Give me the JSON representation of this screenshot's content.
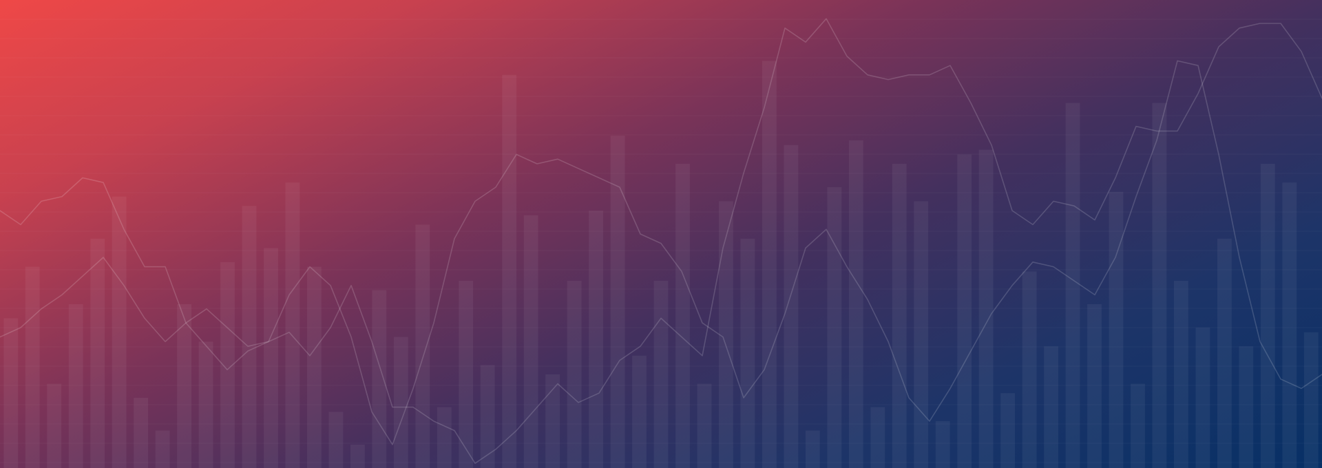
{
  "background": {
    "gradient_colors": [
      "#ef4847",
      "#c8414f",
      "#7a3358",
      "#43305e",
      "#1d3468",
      "#073066"
    ],
    "style": "decorative financial chart"
  },
  "chart_data": [
    {
      "type": "bar",
      "values": [
        0.32,
        0.43,
        0.18,
        0.35,
        0.49,
        0.58,
        0.15,
        0.08,
        0.35,
        0.27,
        0.44,
        0.56,
        0.47,
        0.61,
        0.43,
        0.12,
        0.05,
        0.38,
        0.28,
        0.52,
        0.13,
        0.4,
        0.22,
        0.84,
        0.54,
        0.2,
        0.4,
        0.55,
        0.71,
        0.24,
        0.4,
        0.65,
        0.18,
        0.57,
        0.49,
        0.87,
        0.69,
        0.08,
        0.6,
        0.7,
        0.13,
        0.65,
        0.57,
        0.1,
        0.67,
        0.68,
        0.16,
        0.42,
        0.26,
        0.78,
        0.35,
        0.59,
        0.18,
        0.78,
        0.4,
        0.3,
        0.49,
        0.26,
        0.65,
        0.61,
        0.29
      ]
    },
    {
      "type": "line",
      "series": [
        {
          "values": [
            0.55,
            0.52,
            0.57,
            0.58,
            0.62,
            0.61,
            0.51,
            0.43,
            0.43,
            0.31,
            0.26,
            0.21,
            0.25,
            0.27,
            0.29,
            0.24,
            0.3,
            0.39,
            0.27,
            0.13,
            0.13,
            0.1,
            0.08,
            0.01,
            0.04,
            0.08,
            0.13,
            0.18,
            0.14,
            0.16,
            0.23,
            0.26,
            0.32,
            0.28,
            0.24,
            0.47,
            0.63,
            0.77,
            0.94,
            0.91,
            0.96,
            0.88,
            0.84,
            0.83,
            0.84,
            0.84,
            0.86,
            0.78,
            0.69,
            0.55,
            0.52,
            0.57,
            0.56,
            0.53,
            0.62,
            0.73,
            0.72,
            0.72,
            0.8,
            0.9,
            0.94,
            0.95,
            0.95,
            0.89,
            0.79
          ]
        },
        {
          "values": [
            0.28,
            0.3,
            0.34,
            0.37,
            0.41,
            0.45,
            0.39,
            0.32,
            0.27,
            0.31,
            0.34,
            0.3,
            0.26,
            0.27,
            0.37,
            0.43,
            0.39,
            0.28,
            0.12,
            0.05,
            0.17,
            0.31,
            0.49,
            0.57,
            0.6,
            0.67,
            0.65,
            0.66,
            0.64,
            0.62,
            0.6,
            0.5,
            0.48,
            0.42,
            0.31,
            0.28,
            0.15,
            0.21,
            0.33,
            0.47,
            0.51,
            0.43,
            0.36,
            0.27,
            0.15,
            0.1,
            0.17,
            0.25,
            0.33,
            0.39,
            0.44,
            0.43,
            0.4,
            0.37,
            0.45,
            0.58,
            0.7,
            0.87,
            0.86,
            0.67,
            0.45,
            0.27,
            0.19,
            0.17,
            0.2
          ]
        }
      ]
    }
  ]
}
